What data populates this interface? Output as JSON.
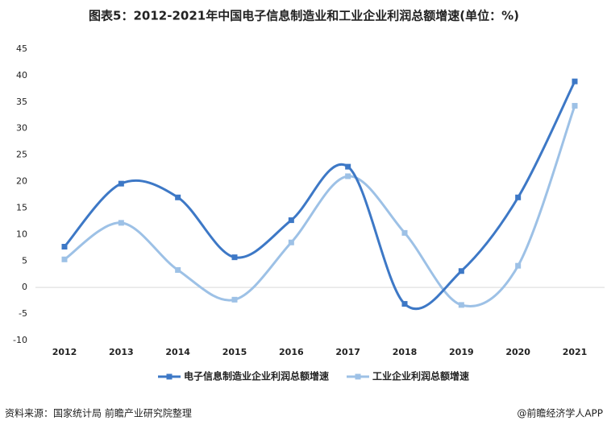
{
  "chart_data": {
    "type": "line",
    "title": "图表5：2012-2021年中国电子信息制造业和工业企业利润总额增速(单位：%)",
    "categories": [
      "2012",
      "2013",
      "2014",
      "2015",
      "2016",
      "2017",
      "2018",
      "2019",
      "2020",
      "2021"
    ],
    "series": [
      {
        "name": "电子信息制造业企业利润总额增速",
        "color": "#3d78c6",
        "values": [
          7.7,
          19.6,
          17.0,
          5.7,
          12.7,
          22.8,
          -3.1,
          3.1,
          17.0,
          38.9
        ]
      },
      {
        "name": "工业企业利润总额增速",
        "color": "#9dc1e6",
        "values": [
          5.3,
          12.2,
          3.3,
          -2.3,
          8.5,
          21.0,
          10.3,
          -3.3,
          4.1,
          34.3
        ]
      }
    ],
    "ylim": [
      -10,
      45
    ],
    "yticks": [
      -10,
      -5,
      0,
      5,
      10,
      15,
      20,
      25,
      30,
      35,
      40,
      45
    ],
    "smooth": true,
    "source": "资料来源：国家统计局 前瞻产业研究院整理",
    "credit": "@前瞻经济学人APP"
  }
}
